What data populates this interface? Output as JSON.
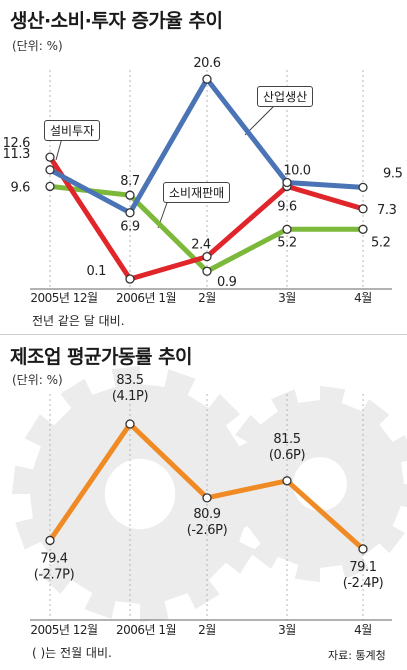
{
  "chart_data": [
    {
      "type": "line",
      "title": "생산·소비·투자 증가율 추이",
      "unit_label": "(단위: %)",
      "categories": [
        "2005년 12월",
        "2006년 1월",
        "2월",
        "3월",
        "4월"
      ],
      "series": [
        {
          "name": "산업생산",
          "color": "#4a74b6",
          "values": [
            11.3,
            6.9,
            20.6,
            10.0,
            9.5
          ],
          "labels": [
            "11.3",
            "6.9",
            "20.6",
            "10.0",
            "9.5"
          ]
        },
        {
          "name": "설비투자",
          "color": "#e0262a",
          "values": [
            12.6,
            0.1,
            2.4,
            9.6,
            7.3
          ],
          "labels": [
            "12.6",
            "0.1",
            "2.4",
            "9.6",
            "7.3"
          ]
        },
        {
          "name": "소비재판매",
          "color": "#7cb83a",
          "values": [
            9.6,
            8.7,
            0.9,
            5.2,
            5.2
          ],
          "labels": [
            "9.6",
            "8.7",
            "0.9",
            "5.2",
            "5.2"
          ]
        }
      ],
      "footnote": "전년 같은 달 대비."
    },
    {
      "type": "line",
      "title": "제조업 평균가동률 추이",
      "unit_label": "(단위: %)",
      "categories": [
        "2005년 12월",
        "2006년 1월",
        "2월",
        "3월",
        "4월"
      ],
      "series": [
        {
          "color": "#f08a24",
          "values": [
            79.4,
            83.5,
            80.9,
            81.5,
            79.1
          ],
          "labels": [
            "79.4",
            "83.5",
            "80.9",
            "81.5",
            "79.1"
          ],
          "changes": [
            "(-2.7P)",
            "(4.1P)",
            "(-2.6P)",
            "(0.6P)",
            "(-2.4P)"
          ]
        }
      ],
      "footnote": "(   )는 전월 대비.",
      "source": "자료: 통계청"
    }
  ]
}
